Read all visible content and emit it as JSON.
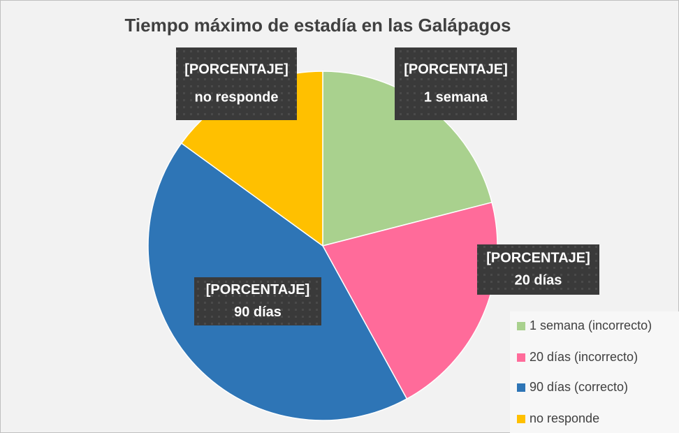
{
  "chart_data": {
    "type": "pie",
    "title": "Tiempo máximo de estadía en las Galápagos",
    "categories": [
      "1 semana (incorrecto)",
      "20 días (incorrecto)",
      "90 días (correcto)",
      "no responde"
    ],
    "values": [
      21,
      21,
      43,
      15
    ],
    "colors": [
      "#a9d18e",
      "#ff6b9a",
      "#2e75b6",
      "#ffc000"
    ],
    "label_placeholder": "[PORCENTAJE]",
    "label_names": [
      "1 semana",
      "20 días",
      "90 días",
      "no responde"
    ],
    "legend": "bottom-right"
  }
}
